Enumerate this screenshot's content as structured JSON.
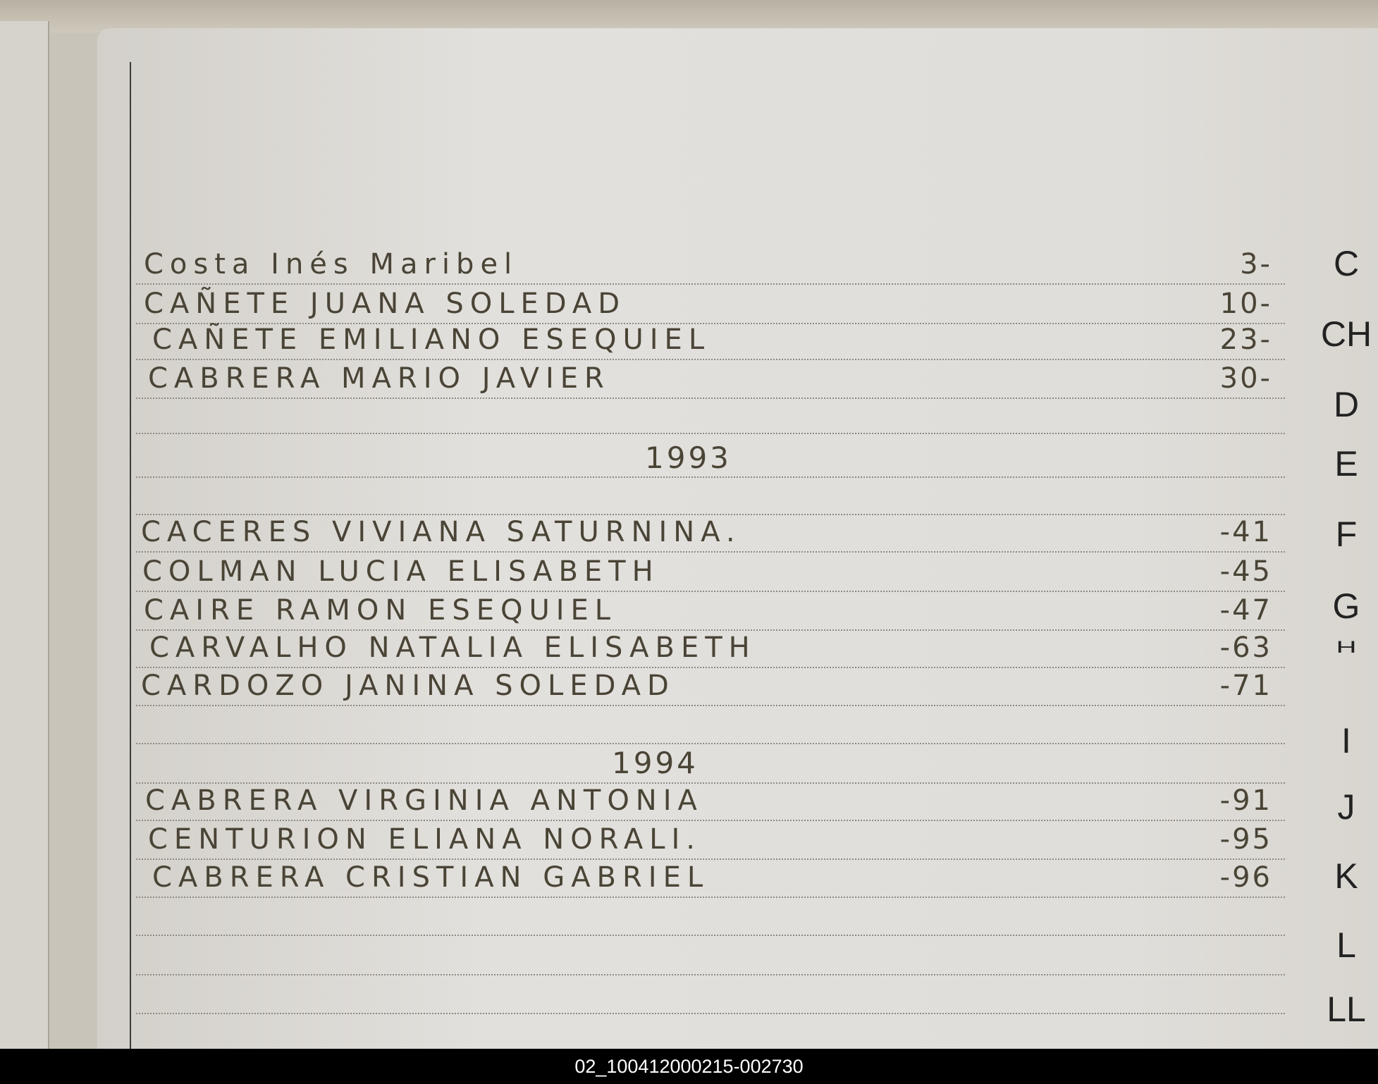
{
  "entries_block_1": [
    {
      "name": "Costa Inés Maribel",
      "number": "3-"
    },
    {
      "name": "CAÑETE JUANA SOLEDAD",
      "number": "10-"
    },
    {
      "name": "CAÑETE EMILIANO ESEQUIEL",
      "number": "23-"
    },
    {
      "name": "CABRERA MARIO JAVIER",
      "number": "30-"
    }
  ],
  "year_1": "1993",
  "entries_block_2": [
    {
      "name": "CACERES VIVIANA SATURNINA.",
      "number": "-41"
    },
    {
      "name": "COLMAN LUCIA ELISABETH",
      "number": "-45"
    },
    {
      "name": "CAIRE RAMON ESEQUIEL",
      "number": "-47"
    },
    {
      "name": "CARVALHO NATALIA ELISABETH",
      "number": "-63"
    },
    {
      "name": "CARDOZO JANINA SOLEDAD",
      "number": "-71"
    }
  ],
  "year_2": "1994",
  "entries_block_3": [
    {
      "name": "CABRERA VIRGINIA ANTONIA",
      "number": "-91"
    },
    {
      "name": "CENTURION ELIANA NORALI.",
      "number": "-95"
    },
    {
      "name": "CABRERA CRISTIAN GABRIEL",
      "number": "-96"
    }
  ],
  "index_tabs": [
    "C",
    "CH",
    "D",
    "E",
    "F",
    "G",
    "H",
    "I",
    "J",
    "K",
    "L",
    "LL"
  ],
  "footer_caption": "02_100412000215-002730",
  "colors": {
    "ink": "#4a4436",
    "paper": "#e0deda",
    "footer": "#000000"
  }
}
